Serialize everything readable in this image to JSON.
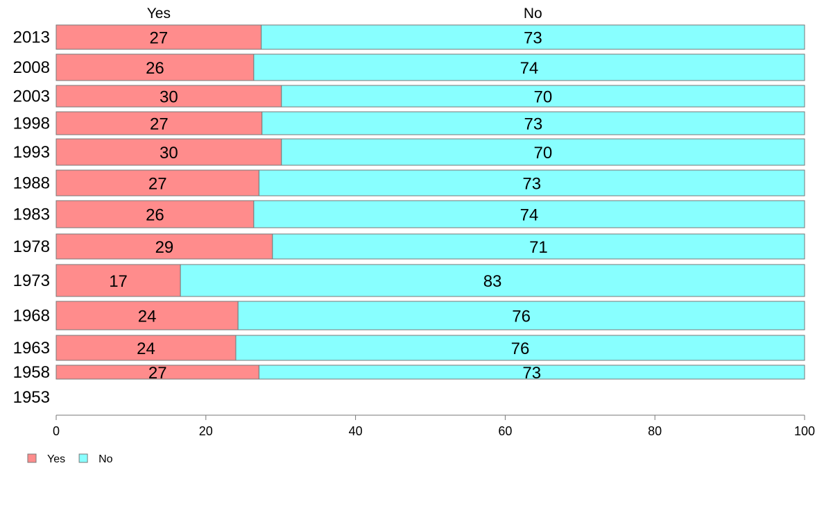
{
  "chart_data": {
    "type": "bar",
    "orientation": "horizontal",
    "stacked": true,
    "column_headers": [
      "Yes",
      "No"
    ],
    "categories": [
      "2013",
      "2008",
      "2003",
      "1998",
      "1993",
      "1988",
      "1983",
      "1978",
      "1973",
      "1968",
      "1963",
      "1958",
      "1953"
    ],
    "series": [
      {
        "name": "Yes",
        "color": "#ff8c8c",
        "values": [
          27.4,
          26.4,
          30.1,
          27.5,
          30.1,
          27.1,
          26.4,
          28.9,
          16.6,
          24.3,
          24.0,
          27.1,
          null
        ],
        "labels": [
          "27",
          "26",
          "30",
          "27",
          "30",
          "27",
          "26",
          "29",
          "17",
          "24",
          "24",
          "27",
          ""
        ]
      },
      {
        "name": "No",
        "color": "#88ffff",
        "values": [
          72.6,
          73.6,
          69.9,
          72.5,
          69.9,
          72.9,
          73.6,
          71.1,
          83.4,
          75.7,
          76.0,
          72.9,
          null
        ],
        "labels": [
          "73",
          "74",
          "70",
          "73",
          "70",
          "73",
          "74",
          "71",
          "83",
          "76",
          "76",
          "73",
          ""
        ]
      }
    ],
    "x_ticks": [
      0,
      20,
      40,
      60,
      80,
      100
    ],
    "xlim": [
      0,
      100
    ],
    "grid": false,
    "legend_position": "bottom-left",
    "bar_stroke": "#777777",
    "axis_color": "#777777"
  }
}
